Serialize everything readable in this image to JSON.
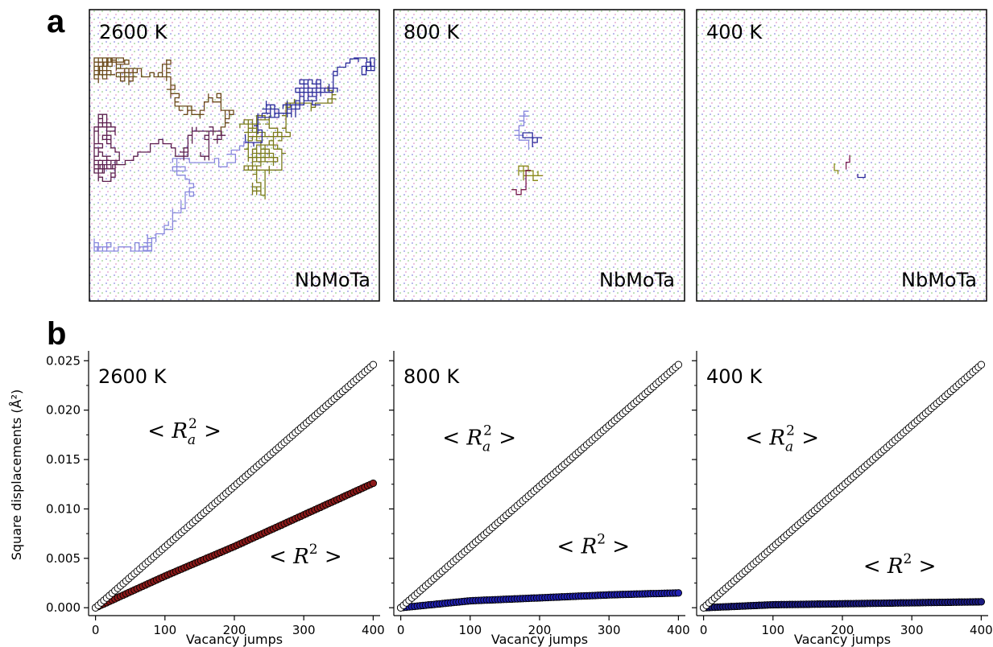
{
  "panel_labels": {
    "a": "a",
    "b": "b"
  },
  "trajectory_panels": [
    {
      "temperature": "2600 K",
      "alloy": "NbMoTa",
      "extent": "large",
      "colors": [
        "#6b4a1a",
        "#7a7a1a",
        "#2b2b9a",
        "#8888dd",
        "#5c1f4f"
      ]
    },
    {
      "temperature": "800 K",
      "alloy": "NbMoTa",
      "extent": "medium",
      "colors": [
        "#8a8a1a",
        "#8888dd",
        "#2b2b9a",
        "#7a1f4f"
      ]
    },
    {
      "temperature": "400 K",
      "alloy": "NbMoTa",
      "extent": "small",
      "colors": [
        "#8a8a1a",
        "#7a1f4f",
        "#2b2b9a"
      ]
    }
  ],
  "chart_data": [
    {
      "type": "scatter",
      "title": "2600 K",
      "xlabel": "Vacancy jumps",
      "ylabel": "Square displacements (Å²)",
      "xlim": [
        -10,
        410
      ],
      "ylim": [
        -0.0008,
        0.026
      ],
      "xticks": [
        "0",
        "100",
        "200",
        "300",
        "400"
      ],
      "yticks": [
        "0.000",
        "0.005",
        "0.010",
        "0.015",
        "0.020",
        "0.025"
      ],
      "annotation_ra": {
        "text": "< R",
        "sub": "a",
        "sup": "2",
        "close": " >"
      },
      "annotation_r": {
        "text": "< R",
        "sup": "2",
        "close": " >"
      },
      "series": [
        {
          "name": "<Ra²>",
          "x": [
            0,
            400
          ],
          "y": [
            0.0,
            0.0246
          ],
          "marker_face": "#ffffff",
          "marker_edge": "#000000"
        },
        {
          "name": "<R²>",
          "x": [
            0,
            100,
            200,
            300,
            400
          ],
          "y": [
            0.0,
            0.0032,
            0.0062,
            0.0094,
            0.0126
          ],
          "marker_face": "#8b1a1a",
          "marker_edge": "#000000"
        }
      ]
    },
    {
      "type": "scatter",
      "title": "800 K",
      "xlabel": "Vacancy jumps",
      "xlim": [
        -10,
        410
      ],
      "ylim": [
        -0.0008,
        0.026
      ],
      "xticks": [
        "0",
        "100",
        "200",
        "300",
        "400"
      ],
      "annotation_ra": {
        "text": "< R",
        "sub": "a",
        "sup": "2",
        "close": " >"
      },
      "annotation_r": {
        "text": "< R",
        "sup": "2",
        "close": " >"
      },
      "series": [
        {
          "name": "<Ra²>",
          "x": [
            0,
            400
          ],
          "y": [
            0.0,
            0.0246
          ],
          "marker_face": "#ffffff",
          "marker_edge": "#000000"
        },
        {
          "name": "<R²>",
          "x": [
            0,
            100,
            200,
            300,
            400
          ],
          "y": [
            0.0,
            0.0007,
            0.001,
            0.0013,
            0.0015
          ],
          "marker_face": "#2020b0",
          "marker_edge": "#000000"
        }
      ]
    },
    {
      "type": "scatter",
      "title": "400 K",
      "xlabel": "Vacancy jumps",
      "xlim": [
        -10,
        410
      ],
      "ylim": [
        -0.0008,
        0.026
      ],
      "xticks": [
        "0",
        "100",
        "200",
        "300",
        "400"
      ],
      "annotation_ra": {
        "text": "< R",
        "sub": "a",
        "sup": "2",
        "close": " >"
      },
      "annotation_r": {
        "text": "< R",
        "sup": "2",
        "close": " >"
      },
      "series": [
        {
          "name": "<Ra²>",
          "x": [
            0,
            400
          ],
          "y": [
            0.0,
            0.0246
          ],
          "marker_face": "#ffffff",
          "marker_edge": "#000000"
        },
        {
          "name": "<R²>",
          "x": [
            0,
            100,
            200,
            300,
            400
          ],
          "y": [
            0.0,
            0.0003,
            0.0004,
            0.0005,
            0.0006
          ],
          "marker_face": "#1a1a80",
          "marker_edge": "#000000"
        }
      ]
    }
  ]
}
